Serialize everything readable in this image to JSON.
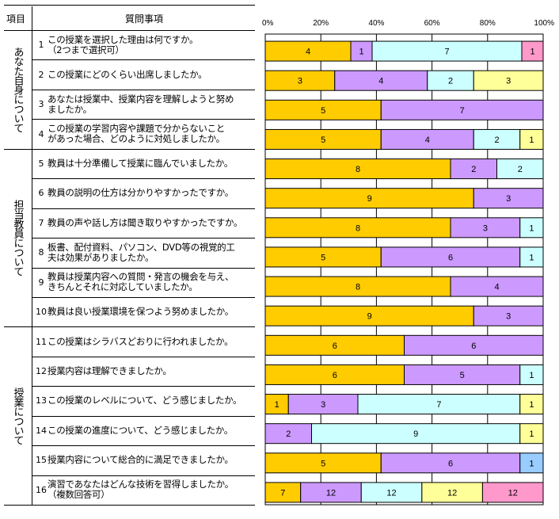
{
  "table": {
    "header_category": "項目",
    "header_question": "質問事項",
    "groups": [
      {
        "label": "あなた自身について"
      },
      {
        "label": "担当教員について"
      },
      {
        "label": "授業について"
      }
    ],
    "questions": [
      {
        "num": "1",
        "lines": [
          "この授業を選択した理由は何ですか。",
          "（2つまで選択可）"
        ]
      },
      {
        "num": "2",
        "lines": [
          "この授業にどのくらい出席しましたか。"
        ]
      },
      {
        "num": "3",
        "lines": [
          "あなたは授業中、授業内容を理解しようと努め",
          "ましたか。"
        ]
      },
      {
        "num": "4",
        "lines": [
          "この授業の学習内容や課題で分からないこと",
          "があった場合、どのように対処しましたか。"
        ]
      },
      {
        "num": "5",
        "lines": [
          "教員は十分準備して授業に臨んでいましたか。"
        ]
      },
      {
        "num": "6",
        "lines": [
          "教員の説明の仕方は分かりやすかったですか。"
        ]
      },
      {
        "num": "7",
        "lines": [
          "教員の声や話し方は聞き取りやすかったですか。"
        ]
      },
      {
        "num": "8",
        "lines": [
          "板書、配付資料、パソコン、DVD等の視覚的工",
          "夫は効果がありましたか。"
        ]
      },
      {
        "num": "9",
        "lines": [
          "教員は授業内容への質問・発言の機会を与え、",
          "きちんとそれに対応していましたか。"
        ]
      },
      {
        "num": "10",
        "lines": [
          "教員は良い授業環境を保つよう努めましたか。"
        ]
      },
      {
        "num": "11",
        "lines": [
          "この授業はシラバスどおりに行われましたか。"
        ]
      },
      {
        "num": "12",
        "lines": [
          "授業内容は理解できましたか。"
        ]
      },
      {
        "num": "13",
        "lines": [
          "この授業のレベルについて、どう感じましたか。"
        ]
      },
      {
        "num": "14",
        "lines": [
          "この授業の進度について、どう感じましたか。"
        ]
      },
      {
        "num": "15",
        "lines": [
          "授業内容について総合的に満足できましたか。"
        ]
      },
      {
        "num": "16",
        "lines": [
          "演習であなたはどんな技術を習得しましたか。",
          "（複数回答可）"
        ]
      }
    ]
  },
  "chart_data": {
    "type": "bar",
    "orientation": "horizontal",
    "stacked": "percent",
    "xlim": [
      0,
      100
    ],
    "x_ticks": [
      "0%",
      "20%",
      "40%",
      "60%",
      "80%",
      "100%"
    ],
    "grid": true,
    "colors": {
      "o": "#FFCC00",
      "p": "#CC99FF",
      "c": "#CCFFFF",
      "y": "#FFFF99",
      "k": "#FF99CC",
      "b": "#99CCFF"
    },
    "rows": [
      [
        {
          "v": 4,
          "c": "o"
        },
        {
          "v": 1,
          "c": "p"
        },
        {
          "v": 7,
          "c": "c"
        },
        {
          "v": 1,
          "c": "k"
        }
      ],
      [
        {
          "v": 3,
          "c": "o"
        },
        {
          "v": 4,
          "c": "p"
        },
        {
          "v": 2,
          "c": "c"
        },
        {
          "v": 3,
          "c": "y"
        }
      ],
      [
        {
          "v": 5,
          "c": "o"
        },
        {
          "v": 7,
          "c": "p"
        }
      ],
      [
        {
          "v": 5,
          "c": "o"
        },
        {
          "v": 4,
          "c": "p"
        },
        {
          "v": 2,
          "c": "c"
        },
        {
          "v": 1,
          "c": "y"
        }
      ],
      [
        {
          "v": 8,
          "c": "o"
        },
        {
          "v": 2,
          "c": "p"
        },
        {
          "v": 2,
          "c": "c"
        }
      ],
      [
        {
          "v": 9,
          "c": "o"
        },
        {
          "v": 3,
          "c": "p"
        }
      ],
      [
        {
          "v": 8,
          "c": "o"
        },
        {
          "v": 3,
          "c": "p"
        },
        {
          "v": 1,
          "c": "c"
        }
      ],
      [
        {
          "v": 5,
          "c": "o"
        },
        {
          "v": 6,
          "c": "p"
        },
        {
          "v": 1,
          "c": "c"
        }
      ],
      [
        {
          "v": 8,
          "c": "o"
        },
        {
          "v": 4,
          "c": "p"
        }
      ],
      [
        {
          "v": 9,
          "c": "o"
        },
        {
          "v": 3,
          "c": "p"
        }
      ],
      [
        {
          "v": 6,
          "c": "o"
        },
        {
          "v": 6,
          "c": "p"
        }
      ],
      [
        {
          "v": 6,
          "c": "o"
        },
        {
          "v": 5,
          "c": "p"
        },
        {
          "v": 1,
          "c": "c"
        }
      ],
      [
        {
          "v": 1,
          "c": "o"
        },
        {
          "v": 3,
          "c": "p"
        },
        {
          "v": 7,
          "c": "c"
        },
        {
          "v": 1,
          "c": "y"
        }
      ],
      [
        {
          "v": 2,
          "c": "p"
        },
        {
          "v": 9,
          "c": "c"
        },
        {
          "v": 1,
          "c": "y"
        }
      ],
      [
        {
          "v": 5,
          "c": "o"
        },
        {
          "v": 6,
          "c": "p"
        },
        {
          "v": 1,
          "c": "b"
        }
      ],
      [
        {
          "v": 7,
          "c": "o"
        },
        {
          "v": 12,
          "c": "p"
        },
        {
          "v": 12,
          "c": "c"
        },
        {
          "v": 12,
          "c": "y"
        },
        {
          "v": 12,
          "c": "k"
        }
      ]
    ]
  }
}
